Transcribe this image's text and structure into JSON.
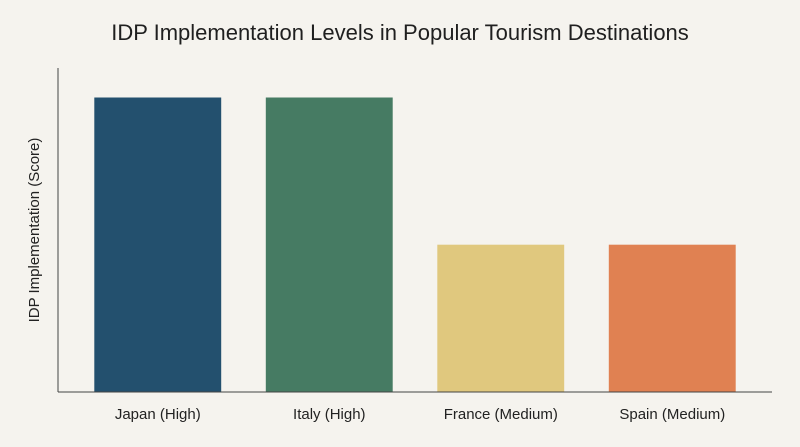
{
  "chart_data": {
    "type": "bar",
    "title": "IDP Implementation Levels in Popular Tourism Destinations",
    "xlabel": "",
    "ylabel": "IDP Implementation (Score)",
    "categories": [
      "Japan (High)",
      "Italy (High)",
      "France (Medium)",
      "Spain (Medium)"
    ],
    "values": [
      100,
      100,
      50,
      50
    ],
    "ylim": [
      0,
      110
    ],
    "grid": false,
    "legend": "none",
    "colors": [
      "#23506e",
      "#467b63",
      "#e0c87e",
      "#e08152"
    ]
  }
}
